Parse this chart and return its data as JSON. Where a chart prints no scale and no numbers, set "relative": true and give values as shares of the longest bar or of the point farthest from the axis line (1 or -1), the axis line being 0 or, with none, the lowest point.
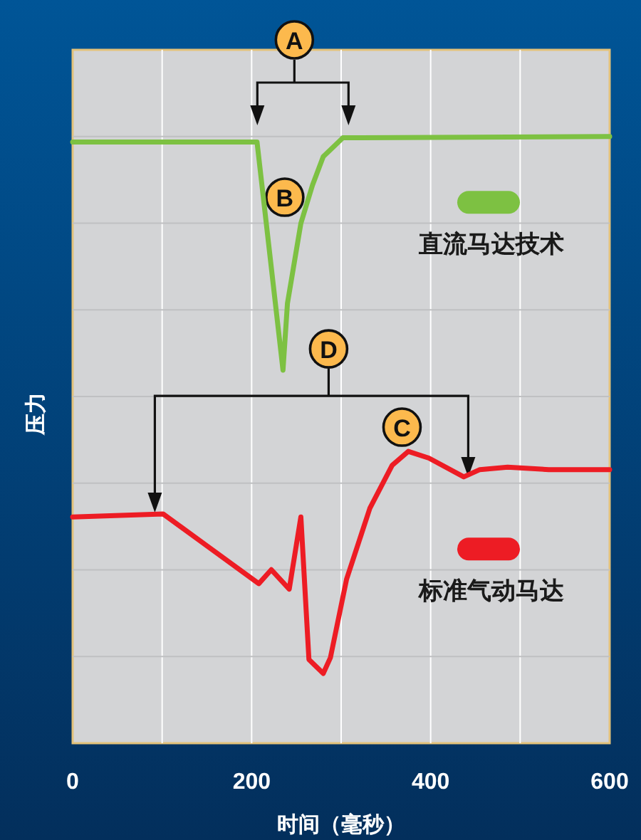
{
  "chart_data": {
    "type": "line",
    "relative": true,
    "xlabel": "时间（毫秒）",
    "ylabel": "压力",
    "xlim": [
      0,
      600
    ],
    "xticks": [
      0,
      {
        "value": 100,
        "label": null
      },
      200,
      {
        "value": 300,
        "label": null
      },
      400,
      {
        "value": 500,
        "label": null
      },
      600
    ],
    "grid": true,
    "legend": "right",
    "marker": "none",
    "line_style": "solid",
    "series": [
      {
        "name": "直流马达技术",
        "color": "#7dc142",
        "x": [
          0,
          206,
          235,
          240,
          255,
          268,
          280,
          302,
          600
        ],
        "values": [
          0.991,
          0.991,
          0.615,
          0.725,
          0.857,
          0.92,
          0.967,
          0.998,
          1.0
        ]
      },
      {
        "name": "标准气动马达",
        "color": "#ed1c24",
        "x": [
          0,
          101,
          208,
          222,
          242,
          255,
          264,
          280,
          288,
          306,
          332,
          357,
          375,
          398,
          437,
          455,
          486,
          532,
          600
        ],
        "values": [
          0.373,
          0.378,
          0.263,
          0.286,
          0.254,
          0.373,
          0.138,
          0.115,
          0.141,
          0.27,
          0.387,
          0.458,
          0.481,
          0.47,
          0.439,
          0.451,
          0.455,
          0.451,
          0.451
        ]
      }
    ],
    "annotations": [
      "A",
      {
        "text": "B",
        "x": 237,
        "y": 0.9
      },
      {
        "text": "D",
        "x": 286,
        "y": 0.65
      },
      {
        "text": "C",
        "x": 368,
        "y": 0.521
      }
    ]
  }
}
